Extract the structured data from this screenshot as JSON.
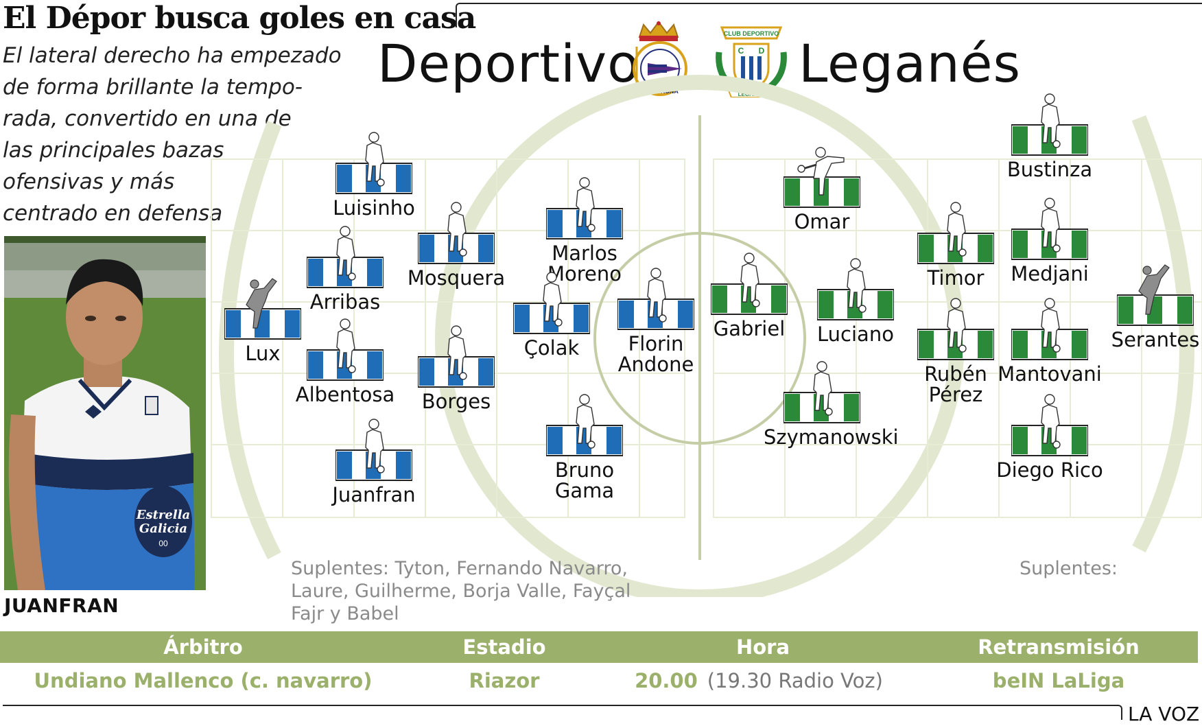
{
  "header": {
    "title": "El Dépor busca goles en casa",
    "subtitle": "El lateral derecho ha empezado\nde forma brillante la tempo-\nrada, convertido en una de\nlas principales bazas\nofensivas y más\ncentrado en defensa"
  },
  "teams": {
    "home": {
      "name": "Deportivo",
      "crest_text": "REAL CLUB DEPORTIVO LA CORUÑA",
      "color": "#1f6db7"
    },
    "away": {
      "name": "Leganés",
      "crest_text_top": "CLUB DEPORTIVO",
      "crest_text_bottom": "LEGANÉS",
      "crest_letters": "C D",
      "color": "#2a8a3a"
    }
  },
  "photo": {
    "caption": "JUANFRAN",
    "shirt_sponsor_1": "Estrella",
    "shirt_sponsor_2": "Galicia",
    "shirt_number": "00"
  },
  "lineups": {
    "home": [
      "Lux",
      "Luisinho",
      "Arribas",
      "Albentosa",
      "Juanfran",
      "Mosquera",
      "Borges",
      "Marlos\nMoreno",
      "Çolak",
      "Bruno\nGama",
      "Florin\nAndone"
    ],
    "away": [
      "Serantes",
      "Bustinza",
      "Medjani",
      "Mantovani",
      "Diego Rico",
      "Timor",
      "Rubén\nPérez",
      "Omar",
      "Gabriel",
      "Szymanowski",
      "Luciano"
    ],
    "home_subs": "Suplentes: Tyton, Fernando Navarro,\nLaure, Guilherme, Borja Valle, Fayçal\nFajr y Babel",
    "away_subs": "Suplentes:"
  },
  "match_info": {
    "referee_label": "Árbitro",
    "referee": "Undiano Mallenco (c. navarro)",
    "stadium_label": "Estadio",
    "stadium": "Riazor",
    "time_label": "Hora",
    "time": "20.00",
    "time_extra": "(19.30 Radio Voz)",
    "broadcast_label": "Retransmisión",
    "broadcast": "beIN LaLiga"
  },
  "credit": "LA VOZ",
  "colors": {
    "band": "#9bb06a",
    "pitch_lines": "#e7ecd7",
    "circles": "#d7dfc2"
  }
}
